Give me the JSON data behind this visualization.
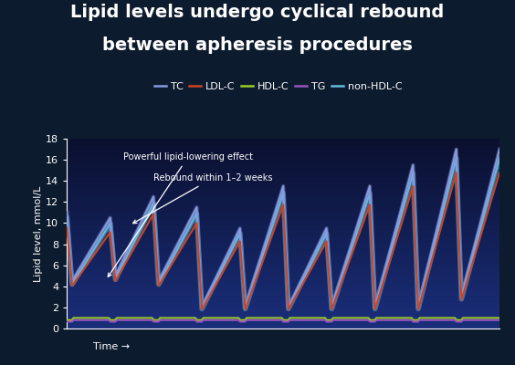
{
  "title_line1": "Lipid levels undergo cyclical rebound",
  "title_line2": "between apheresis procedures",
  "ylabel": "Lipid level, mmol/L",
  "xlabel": "Time →",
  "ylim": [
    0,
    18
  ],
  "yticks": [
    0,
    2,
    4,
    6,
    8,
    10,
    12,
    14,
    16,
    18
  ],
  "bg_outer": "#0d1b2e",
  "bg_inner_top": "#0d1b3a",
  "bg_inner_bot": "#1a3580",
  "annotation1": "Powerful lipid-lowering effect",
  "annotation2": "Rebound within 1–2 weeks",
  "TC_color": "#8899dd",
  "LDL_color": "#cc4422",
  "HDL_color": "#99cc22",
  "TG_color": "#9955bb",
  "nonHDL_color": "#66bbdd",
  "title_fontsize": 14,
  "axis_fontsize": 8,
  "legend_fontsize": 8,
  "tc_peaks": [
    11.0,
    10.5,
    12.5,
    11.5,
    9.5,
    13.5,
    9.5,
    13.5,
    15.5,
    17.0
  ],
  "tc_troughs": [
    4.5,
    5.0,
    4.5,
    2.0,
    2.0,
    2.0,
    2.0,
    2.0,
    2.0,
    3.0
  ],
  "ldl_scale": 0.87,
  "nonhdl_scale": 0.95,
  "hdl_base": 1.0,
  "tg_base": 0.8,
  "hdl_bump": 0.4,
  "tg_bump": 0.3
}
